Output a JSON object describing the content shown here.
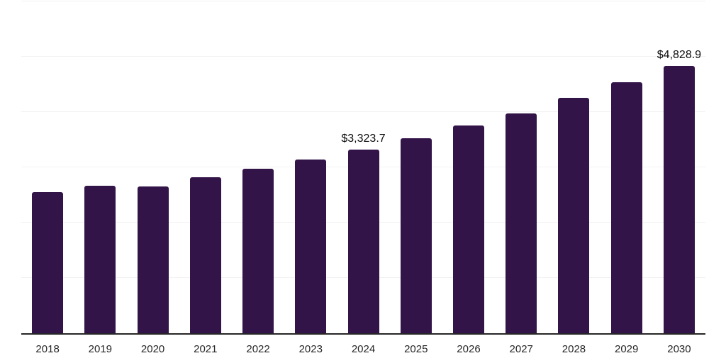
{
  "chart_data": {
    "type": "bar",
    "title": "",
    "xlabel": "",
    "ylabel": "",
    "categories": [
      "2018",
      "2019",
      "2020",
      "2021",
      "2022",
      "2023",
      "2024",
      "2025",
      "2026",
      "2027",
      "2028",
      "2029",
      "2030"
    ],
    "values": [
      2551,
      2673,
      2654,
      2827,
      2974,
      3141,
      3323.7,
      3526,
      3756,
      3974,
      4256,
      4538,
      4828.9
    ],
    "value_labels": {
      "2024": "$3,323.7",
      "2030": "$4,828.9"
    },
    "ylim": [
      0,
      6000
    ],
    "gridline_step": 1000,
    "grid": true,
    "legend": false
  },
  "style": {
    "background": "#ffffff",
    "bar_color": "#331449",
    "axis_color": "#262626",
    "gridline_color": "#f2f2f2",
    "tick_label_color": "#262626",
    "data_label_color": "#0d0d0d"
  }
}
